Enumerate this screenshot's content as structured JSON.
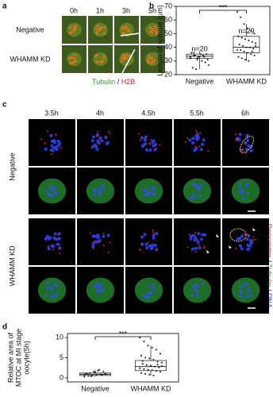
{
  "panels": {
    "a": {
      "label": "a",
      "times": [
        "0h",
        "1h",
        "3h",
        "5h"
      ],
      "rows": [
        "Negative",
        "WHAMM KD"
      ],
      "legend": [
        "Tubulin",
        "/",
        "H2B"
      ]
    },
    "b": {
      "label": "b",
      "chart": {
        "type": "box",
        "ylabel": "Length of spindle (μm)",
        "categories": [
          "Negative",
          "WHAMM KD"
        ],
        "ylim": [
          20,
          70
        ],
        "yticks": [
          20,
          30,
          40,
          50,
          60,
          70
        ],
        "significance": "***",
        "n_labels": [
          "n=20",
          "n=29"
        ],
        "boxes": [
          {
            "whislo": 24,
            "q1": 32,
            "median": 33.5,
            "q3": 35,
            "whishi": 37,
            "points": [
              33,
              34,
              32,
              35,
              33,
              31,
              36,
              34,
              33,
              30,
              29,
              27,
              25,
              24,
              33,
              34,
              35,
              32,
              36,
              31
            ]
          },
          {
            "whislo": 30,
            "q1": 36,
            "median": 40,
            "q3": 48,
            "whishi": 57,
            "points": [
              66,
              62,
              57,
              54,
              52,
              50,
              48,
              47,
              46,
              45,
              44,
              43,
              42,
              41,
              40,
              40,
              39,
              38,
              38,
              37,
              36,
              35,
              34,
              33,
              32,
              31,
              30,
              37,
              41
            ]
          }
        ]
      }
    },
    "c": {
      "label": "c",
      "times": [
        "3.5h",
        "4h",
        "4.5h",
        "5.5h",
        "6h"
      ],
      "rows": [
        "Negative",
        "WHAMM KD"
      ],
      "legend": [
        "Pericentrin",
        "/",
        "Tubulin",
        "/",
        "DNA"
      ]
    },
    "d": {
      "label": "d",
      "chart": {
        "type": "box",
        "ylabel": [
          "Relative area of",
          "MTOC at MI stage",
          "oocyte(5h)"
        ],
        "categories": [
          "Negative",
          "WHAMM KD"
        ],
        "ylim": [
          -1,
          11
        ],
        "yticks": [
          0,
          5,
          10
        ],
        "significance": "***",
        "boxes": [
          {
            "whislo": 0.3,
            "q1": 0.6,
            "median": 0.9,
            "q3": 1.2,
            "whishi": 2.0,
            "points": [
              0.3,
              0.5,
              0.6,
              0.8,
              0.9,
              1,
              1.1,
              1.2,
              1.5,
              1.8,
              0.7,
              0.9,
              1.0,
              0.4,
              1.3,
              2.0,
              1.6,
              0.8
            ]
          },
          {
            "whislo": 0.6,
            "q1": 1.8,
            "median": 2.8,
            "q3": 4.3,
            "whishi": 8,
            "points": [
              10,
              9,
              8,
              7.5,
              7,
              6,
              5.5,
              5,
              4.8,
              4.5,
              4,
              3.8,
              3.5,
              3.2,
              3,
              2.8,
              2.6,
              2.4,
              2.2,
              2,
              1.9,
              1.7,
              1.5,
              1.2,
              1,
              0.8,
              0.6,
              3.3,
              2.9,
              4.2
            ]
          }
        ]
      }
    }
  }
}
